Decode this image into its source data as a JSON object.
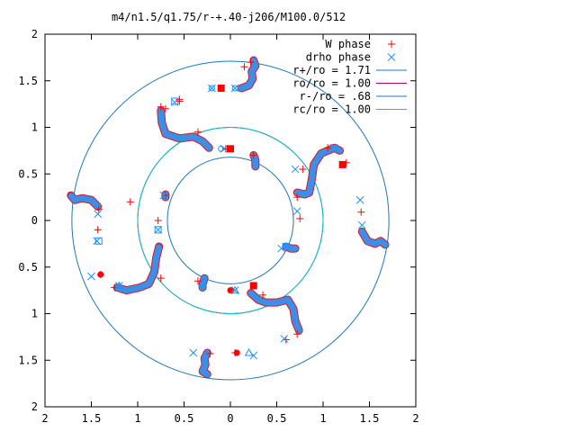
{
  "chart_data": {
    "type": "scatter",
    "title": "m4/n1.5/q1.75/r-+.40-j206/M100.0/512",
    "xlabel": "",
    "ylabel": "",
    "xlim": [
      -2,
      2
    ],
    "ylim": [
      -2,
      2
    ],
    "x_ticks": [
      -2,
      -1.5,
      -1,
      -0.5,
      0,
      0.5,
      1,
      1.5,
      2
    ],
    "y_ticks": [
      -2,
      -1.5,
      -1,
      -0.5,
      0,
      0.5,
      1,
      1.5,
      2
    ],
    "x_tick_labels": [
      "2",
      "1.5",
      "1",
      "0.5",
      "0",
      "0.5",
      "1",
      "1.5",
      "2"
    ],
    "y_tick_labels": [
      "2",
      "1.5",
      "1",
      "0.5",
      "0",
      "0.5",
      "1",
      "1.5",
      "2"
    ],
    "grid": false,
    "legend_position": "top-right",
    "legend": [
      {
        "label": "W phase",
        "kind": "marker",
        "marker": "plus",
        "color": "#ff0000"
      },
      {
        "label": "drho phase",
        "kind": "marker",
        "marker": "cross",
        "color": "#1e90ff"
      },
      {
        "label": "r+/ro = 1.71",
        "kind": "circle",
        "radius": 1.71,
        "color": "#1f78b4"
      },
      {
        "label": "ro/ro = 1.00",
        "kind": "circle",
        "radius": 1.0,
        "color": "#b2006b"
      },
      {
        "label": "r-/ro = .68",
        "kind": "circle",
        "radius": 0.68,
        "color": "#1f78b4"
      },
      {
        "label": "rc/ro = 1.00",
        "kind": "circle",
        "radius": 1.0,
        "color": "#00c8d2"
      }
    ],
    "series": [
      {
        "name": "W phase",
        "marker": "plus",
        "color": "#ff0000",
        "points": [
          [
            0.15,
            1.65
          ],
          [
            0.22,
            1.7
          ],
          [
            -0.55,
            1.28
          ],
          [
            -0.35,
            0.95
          ],
          [
            -0.05,
            0.77
          ],
          [
            0.25,
            0.7
          ],
          [
            0.72,
            0.25
          ],
          [
            0.78,
            0.55
          ],
          [
            1.05,
            0.78
          ],
          [
            1.25,
            0.62
          ],
          [
            1.41,
            0.09
          ],
          [
            0.75,
            0.02
          ],
          [
            0.35,
            -0.8
          ],
          [
            0.6,
            -1.28
          ],
          [
            0.72,
            -1.22
          ],
          [
            -0.22,
            -1.43
          ],
          [
            0.05,
            -1.42
          ],
          [
            0.02,
            -0.75
          ],
          [
            -0.35,
            -0.65
          ],
          [
            -0.75,
            -0.62
          ],
          [
            -1.25,
            -0.72
          ],
          [
            -1.4,
            -0.58
          ],
          [
            -1.43,
            -0.1
          ],
          [
            -0.78,
            0.0
          ],
          [
            -1.42,
            0.12
          ],
          [
            -0.7,
            0.27
          ],
          [
            -0.75,
            1.22
          ],
          [
            -0.55,
            1.3
          ],
          [
            -0.7,
            1.2
          ],
          [
            -1.08,
            0.2
          ]
        ]
      },
      {
        "name": "drho phase",
        "marker": "cross",
        "color": "#1e90ff",
        "points": [
          [
            0.05,
            1.42
          ],
          [
            -0.2,
            1.42
          ],
          [
            -0.6,
            1.27
          ],
          [
            -0.07,
            0.77
          ],
          [
            0.55,
            -0.3
          ],
          [
            0.72,
            0.1
          ],
          [
            1.4,
            0.22
          ],
          [
            1.42,
            -0.05
          ],
          [
            0.58,
            -1.27
          ],
          [
            0.25,
            -1.45
          ],
          [
            -0.4,
            -1.42
          ],
          [
            0.05,
            -0.75
          ],
          [
            -0.28,
            -0.63
          ],
          [
            -1.5,
            -0.6
          ],
          [
            -1.2,
            -0.7
          ],
          [
            -1.43,
            0.07
          ],
          [
            -1.44,
            -0.22
          ],
          [
            -0.78,
            -0.1
          ],
          [
            -0.72,
            0.27
          ],
          [
            0.7,
            0.55
          ],
          [
            1.12,
            0.78
          ]
        ]
      }
    ],
    "curves": [
      {
        "name": "arc-top",
        "color": "#3c8ee6",
        "points": [
          [
            0.12,
            1.42
          ],
          [
            0.2,
            1.45
          ],
          [
            0.24,
            1.52
          ],
          [
            0.23,
            1.6
          ],
          [
            0.27,
            1.66
          ],
          [
            0.25,
            1.72
          ]
        ]
      },
      {
        "name": "arc-upper-left",
        "color": "#3c8ee6",
        "points": [
          [
            -0.75,
            1.18
          ],
          [
            -0.74,
            1.05
          ],
          [
            -0.7,
            0.93
          ],
          [
            -0.55,
            0.88
          ],
          [
            -0.4,
            0.9
          ],
          [
            -0.3,
            0.85
          ],
          [
            -0.23,
            0.78
          ]
        ]
      },
      {
        "name": "arc-center-top",
        "color": "#3c8ee6",
        "points": [
          [
            0.25,
            0.7
          ],
          [
            0.27,
            0.65
          ],
          [
            0.27,
            0.58
          ]
        ]
      },
      {
        "name": "arc-right",
        "color": "#3c8ee6",
        "points": [
          [
            0.72,
            0.3
          ],
          [
            0.8,
            0.28
          ],
          [
            0.85,
            0.3
          ],
          [
            0.88,
            0.45
          ],
          [
            0.9,
            0.6
          ],
          [
            0.98,
            0.72
          ],
          [
            1.12,
            0.78
          ],
          [
            1.18,
            0.75
          ]
        ]
      },
      {
        "name": "arc-far-right",
        "color": "#3c8ee6",
        "points": [
          [
            1.42,
            -0.12
          ],
          [
            1.48,
            -0.22
          ],
          [
            1.56,
            -0.25
          ],
          [
            1.62,
            -0.22
          ],
          [
            1.67,
            -0.26
          ]
        ]
      },
      {
        "name": "arc-center-right",
        "color": "#3c8ee6",
        "points": [
          [
            0.6,
            -0.28
          ],
          [
            0.65,
            -0.3
          ],
          [
            0.7,
            -0.3
          ]
        ]
      },
      {
        "name": "arc-lower-right",
        "color": "#3c8ee6",
        "points": [
          [
            0.22,
            -0.78
          ],
          [
            0.3,
            -0.85
          ],
          [
            0.38,
            -0.88
          ],
          [
            0.5,
            -0.88
          ],
          [
            0.62,
            -0.85
          ],
          [
            0.68,
            -0.95
          ],
          [
            0.7,
            -1.08
          ],
          [
            0.74,
            -1.18
          ]
        ]
      },
      {
        "name": "arc-bottom",
        "color": "#3c8ee6",
        "points": [
          [
            -0.25,
            -1.42
          ],
          [
            -0.28,
            -1.48
          ],
          [
            -0.27,
            -1.55
          ],
          [
            -0.3,
            -1.62
          ],
          [
            -0.25,
            -1.65
          ]
        ]
      },
      {
        "name": "arc-center-bottom",
        "color": "#3c8ee6",
        "points": [
          [
            -0.28,
            -0.62
          ],
          [
            -0.3,
            -0.68
          ],
          [
            -0.3,
            -0.72
          ]
        ]
      },
      {
        "name": "arc-lower-left",
        "color": "#3c8ee6",
        "points": [
          [
            -1.22,
            -0.72
          ],
          [
            -1.12,
            -0.75
          ],
          [
            -0.98,
            -0.72
          ],
          [
            -0.88,
            -0.68
          ],
          [
            -0.82,
            -0.55
          ],
          [
            -0.8,
            -0.4
          ],
          [
            -0.77,
            -0.28
          ]
        ]
      },
      {
        "name": "arc-far-left",
        "color": "#3c8ee6",
        "points": [
          [
            -1.43,
            0.15
          ],
          [
            -1.5,
            0.22
          ],
          [
            -1.6,
            0.24
          ],
          [
            -1.68,
            0.22
          ],
          [
            -1.72,
            0.27
          ]
        ]
      },
      {
        "name": "arc-center-left",
        "color": "#3c8ee6",
        "points": [
          [
            -0.7,
            0.25
          ],
          [
            -0.7,
            0.28
          ]
        ]
      }
    ],
    "square_markers": [
      {
        "x": -0.1,
        "y": 1.42,
        "color": "#ff0000"
      },
      {
        "x": -0.6,
        "y": 1.28,
        "color": "#1e90ff"
      },
      {
        "x": 0.0,
        "y": 0.77,
        "color": "#ff0000"
      },
      {
        "x": 1.21,
        "y": 0.6,
        "color": "#ff0000"
      },
      {
        "x": -0.78,
        "y": -0.1,
        "color": "#1e90ff"
      },
      {
        "x": -1.42,
        "y": -0.22,
        "color": "#1e90ff"
      },
      {
        "x": 0.6,
        "y": -0.28,
        "color": "#1e90ff"
      },
      {
        "x": 0.25,
        "y": -0.7,
        "color": "#ff0000"
      }
    ],
    "circle_markers": [
      {
        "x": 0.05,
        "y": 1.42,
        "color": "#1e90ff",
        "filled": false
      },
      {
        "x": -0.2,
        "y": 1.42,
        "color": "#1e90ff",
        "filled": false
      },
      {
        "x": -0.1,
        "y": 0.77,
        "color": "#1e90ff",
        "filled": false
      },
      {
        "x": 0.0,
        "y": -0.75,
        "color": "#ff0000",
        "filled": true
      },
      {
        "x": 0.07,
        "y": -1.42,
        "color": "#ff0000",
        "filled": true
      },
      {
        "x": -1.4,
        "y": -0.58,
        "color": "#ff0000",
        "filled": true
      }
    ],
    "triangle_markers": [
      {
        "x": 0.05,
        "y": -0.75,
        "color": "#1e90ff"
      },
      {
        "x": 0.2,
        "y": -1.42,
        "color": "#1e90ff"
      },
      {
        "x": -1.2,
        "y": -0.7,
        "color": "#1e90ff"
      },
      {
        "x": -0.3,
        "y": -0.68,
        "color": "#1e90ff"
      }
    ]
  }
}
